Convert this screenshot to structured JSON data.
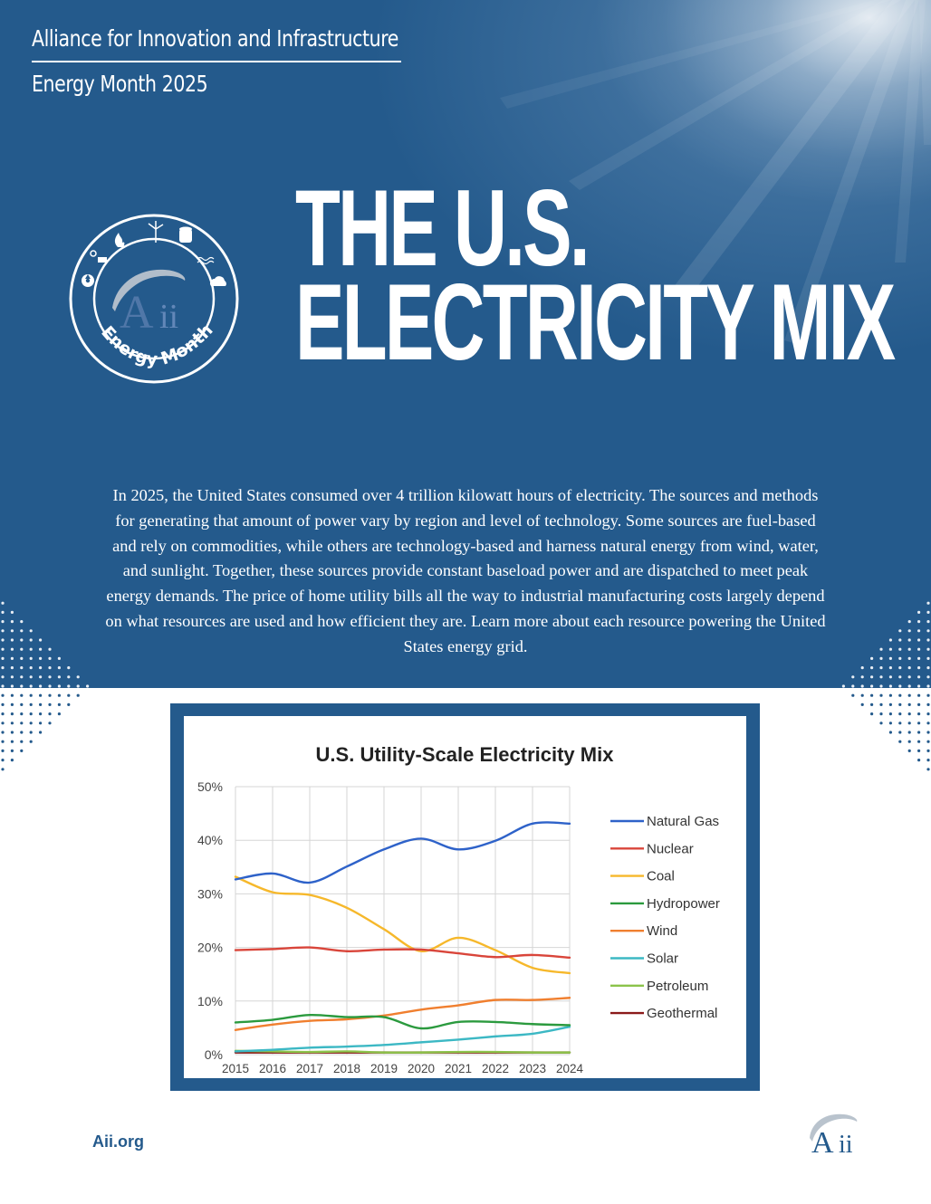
{
  "header": {
    "org_name": "Alliance for Innovation and Infrastructure",
    "event": "Energy Month 2025"
  },
  "badge": {
    "label": "Energy Month",
    "logo_text": "Aii"
  },
  "title": {
    "line1": "THE U.S.",
    "line2": "ELECTRICITY MIX"
  },
  "intro": "In 2025, the United States consumed over 4 trillion kilowatt hours of electricity. The sources and methods for generating that amount of power vary by region and level of technology. Some sources are fuel-based and rely on commodities, while others are technology-based and harness natural energy from wind, water, and sunlight. Together, these sources provide constant baseload power and are dispatched to meet peak energy demands. The price of home utility bills all the way to industrial manufacturing costs largely depend on what resources are used and how efficient they are. Learn more about each resource powering the United States energy grid.",
  "colors": {
    "brand_blue": "#245a8c",
    "white": "#ffffff"
  },
  "chart_data": {
    "type": "line",
    "title": "U.S. Utility-Scale Electricity Mix",
    "xlabel": "",
    "ylabel": "",
    "x": [
      "2015",
      "2016",
      "2017",
      "2018",
      "2019",
      "2020",
      "2021",
      "2022",
      "2023",
      "2024"
    ],
    "ylim": [
      0,
      50
    ],
    "yticks": [
      "0%",
      "10%",
      "20%",
      "30%",
      "40%",
      "50%"
    ],
    "grid": true,
    "legend_position": "right",
    "series": [
      {
        "name": "Natural Gas",
        "color": "#2e62c9",
        "values": [
          32.7,
          33.8,
          32.1,
          35.1,
          38.3,
          40.3,
          38.3,
          39.9,
          43.1,
          43.1
        ]
      },
      {
        "name": "Nuclear",
        "color": "#d9453a",
        "values": [
          19.5,
          19.7,
          20.0,
          19.3,
          19.6,
          19.6,
          18.9,
          18.2,
          18.6,
          18.1
        ]
      },
      {
        "name": "Coal",
        "color": "#f6b82b",
        "values": [
          33.2,
          30.3,
          29.8,
          27.4,
          23.4,
          19.3,
          21.8,
          19.5,
          16.2,
          15.2
        ]
      },
      {
        "name": "Hydropower",
        "color": "#2b9a3e",
        "values": [
          6.0,
          6.5,
          7.4,
          7.0,
          7.0,
          4.9,
          6.1,
          6.1,
          5.7,
          5.5
        ]
      },
      {
        "name": "Wind",
        "color": "#f07f2f",
        "values": [
          4.6,
          5.6,
          6.3,
          6.6,
          7.3,
          8.4,
          9.2,
          10.2,
          10.2,
          10.6
        ]
      },
      {
        "name": "Solar",
        "color": "#3cb8c4",
        "values": [
          0.6,
          0.9,
          1.3,
          1.5,
          1.8,
          2.3,
          2.8,
          3.4,
          3.9,
          5.2
        ]
      },
      {
        "name": "Petroleum",
        "color": "#8bc34a",
        "values": [
          0.7,
          0.6,
          0.5,
          0.6,
          0.4,
          0.4,
          0.5,
          0.5,
          0.4,
          0.4
        ]
      },
      {
        "name": "Geothermal",
        "color": "#8b1a1a",
        "values": [
          0.4,
          0.4,
          0.4,
          0.4,
          0.4,
          0.4,
          0.4,
          0.4,
          0.4,
          0.4
        ]
      }
    ]
  },
  "footer": {
    "link": "Aii.org",
    "logo_text": "Aii"
  }
}
